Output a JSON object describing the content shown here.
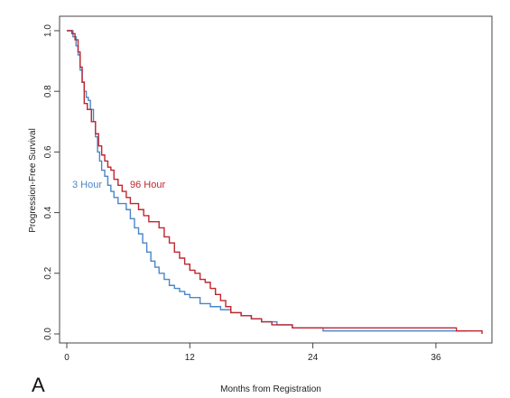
{
  "chart_data": {
    "type": "line",
    "step": true,
    "panel_label": "A",
    "xlabel": "Months from Registration",
    "ylabel": "Progression-Free Survival",
    "xlim": [
      0,
      40.5
    ],
    "ylim": [
      0,
      1.0
    ],
    "xticks": [
      0,
      12,
      24,
      36
    ],
    "yticks": [
      0.0,
      0.2,
      0.4,
      0.6,
      0.8,
      1.0
    ],
    "ytick_labels": [
      "0.0",
      "0.2",
      "0.4",
      "0.6",
      "0.8",
      "1.0"
    ],
    "xtick_labels": [
      "0",
      "12",
      "24",
      "36"
    ],
    "grid": false,
    "series": [
      {
        "name": "3 Hour",
        "color": "#4a86c8",
        "x": [
          0,
          0.6,
          0.9,
          1.1,
          1.3,
          1.5,
          1.7,
          1.9,
          2.1,
          2.3,
          2.6,
          2.8,
          3.0,
          3.2,
          3.4,
          3.7,
          4.0,
          4.3,
          4.6,
          5.0,
          5.4,
          5.8,
          6.2,
          6.6,
          7.0,
          7.4,
          7.8,
          8.2,
          8.6,
          9.0,
          9.5,
          10.0,
          10.5,
          11.0,
          11.5,
          12.0,
          13.0,
          14.0,
          15.0,
          16.0,
          17.0,
          18.0,
          19.0,
          20.5,
          22.0,
          25.0,
          39.0
        ],
        "y": [
          1.0,
          0.98,
          0.95,
          0.92,
          0.87,
          0.83,
          0.8,
          0.78,
          0.77,
          0.74,
          0.7,
          0.65,
          0.6,
          0.57,
          0.54,
          0.52,
          0.49,
          0.47,
          0.45,
          0.43,
          0.43,
          0.41,
          0.38,
          0.35,
          0.33,
          0.3,
          0.27,
          0.24,
          0.22,
          0.2,
          0.18,
          0.16,
          0.15,
          0.14,
          0.13,
          0.12,
          0.1,
          0.09,
          0.08,
          0.07,
          0.06,
          0.05,
          0.04,
          0.03,
          0.02,
          0.01,
          0.01
        ]
      },
      {
        "name": "96 Hour",
        "color": "#c0262d",
        "x": [
          0,
          0.5,
          0.8,
          1.1,
          1.3,
          1.5,
          1.7,
          2.0,
          2.4,
          2.8,
          3.1,
          3.4,
          3.7,
          4.0,
          4.3,
          4.6,
          5.0,
          5.4,
          5.8,
          6.2,
          6.6,
          7.0,
          7.5,
          8.0,
          8.5,
          9.0,
          9.5,
          10.0,
          10.5,
          11.0,
          11.5,
          12.0,
          12.5,
          13.0,
          13.5,
          14.0,
          14.5,
          15.0,
          15.5,
          16.0,
          17.0,
          18.0,
          19.0,
          20.0,
          21.0,
          22.0,
          37.0,
          38.0,
          39.0,
          40.5
        ],
        "y": [
          1.0,
          0.99,
          0.97,
          0.93,
          0.88,
          0.83,
          0.76,
          0.74,
          0.7,
          0.66,
          0.62,
          0.59,
          0.57,
          0.55,
          0.54,
          0.51,
          0.49,
          0.47,
          0.45,
          0.43,
          0.43,
          0.41,
          0.39,
          0.37,
          0.37,
          0.35,
          0.32,
          0.3,
          0.27,
          0.25,
          0.23,
          0.21,
          0.2,
          0.18,
          0.17,
          0.15,
          0.13,
          0.11,
          0.09,
          0.07,
          0.06,
          0.05,
          0.04,
          0.03,
          0.03,
          0.02,
          0.02,
          0.01,
          0.01,
          0.0
        ]
      }
    ]
  },
  "series_labels": [
    "3 Hour",
    "96 Hour"
  ]
}
